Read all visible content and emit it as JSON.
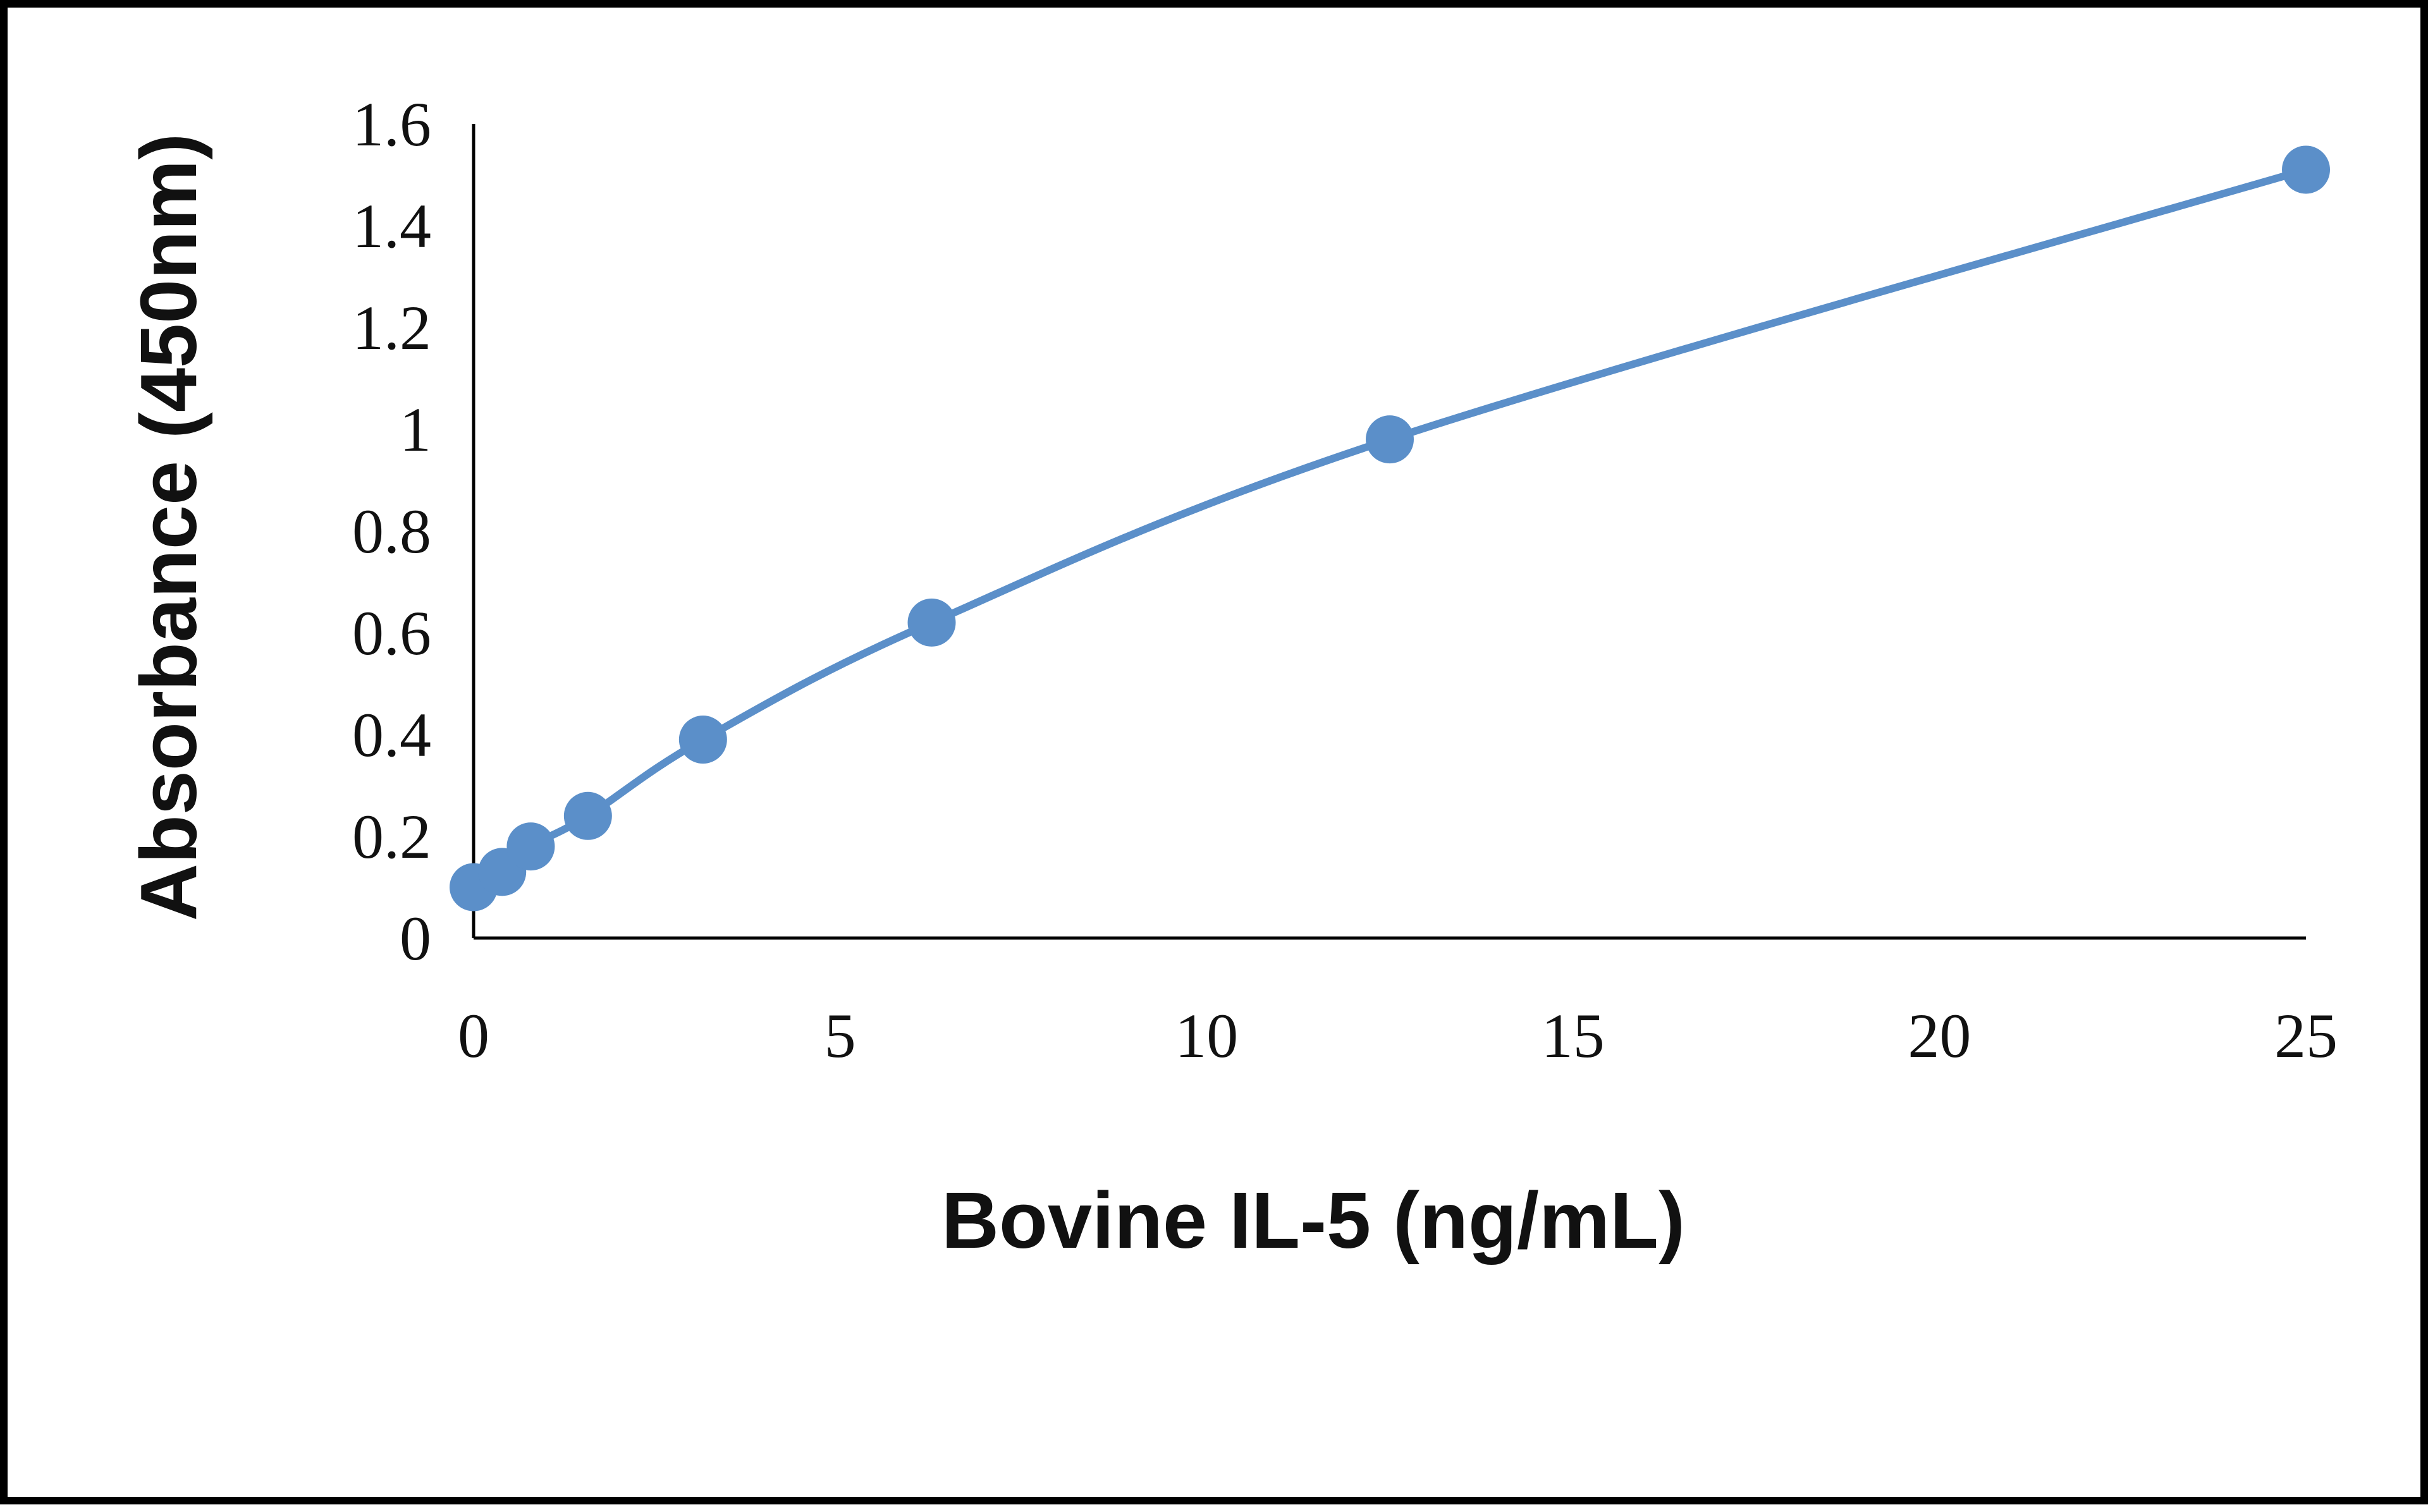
{
  "chart_data": {
    "type": "line",
    "xlabel": "Bovine IL-5 (ng/mL)",
    "ylabel": "Absorbance (450nm)",
    "xlim": [
      0,
      25
    ],
    "ylim": [
      0,
      1.6
    ],
    "x_ticks": [
      "0",
      "5",
      "10",
      "15",
      "20",
      "25"
    ],
    "y_ticks": [
      "0",
      "0.2",
      "0.4",
      "0.6",
      "0.8",
      "1",
      "1.2",
      "1.4",
      "1.6"
    ],
    "grid": false,
    "legend": "none",
    "smooth": true,
    "markers": "circle",
    "series": [
      {
        "x": [
          0,
          0.39,
          0.78,
          1.56,
          3.13,
          6.25,
          12.5,
          25
        ],
        "y": [
          0.1,
          0.13,
          0.18,
          0.24,
          0.39,
          0.62,
          0.98,
          1.51
        ],
        "color": "#5b8fc9"
      }
    ]
  }
}
